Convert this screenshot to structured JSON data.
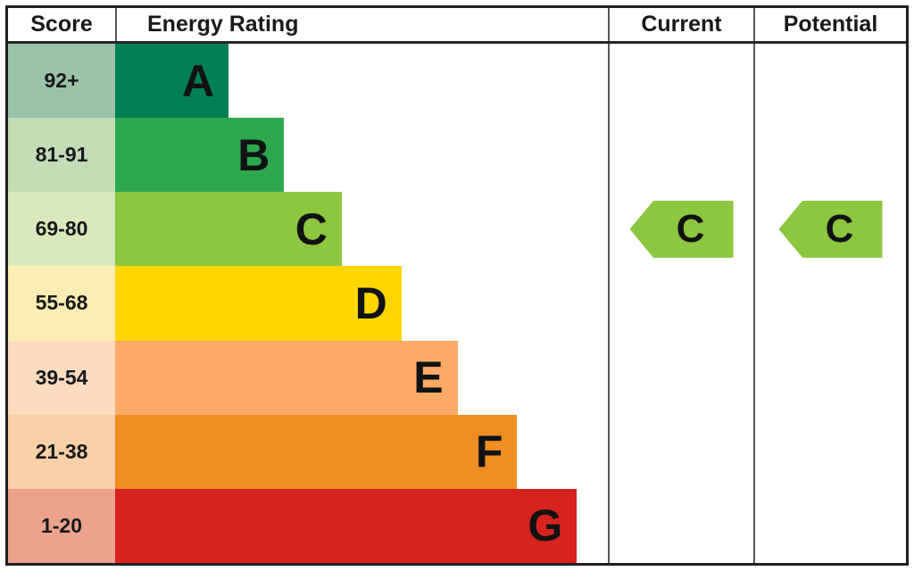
{
  "header": {
    "score_label": "Score",
    "rating_label": "Energy Rating",
    "current_label": "Current",
    "potential_label": "Potential"
  },
  "chart_data": {
    "type": "bar",
    "title": "Energy Rating",
    "bands": [
      {
        "score": "92+",
        "letter": "A",
        "bar_color": "#008054",
        "score_bg": "#9cc3a8",
        "bar_width_pct": 23.0
      },
      {
        "score": "81-91",
        "letter": "B",
        "bar_color": "#2ea84e",
        "score_bg": "#c2ddb5",
        "bar_width_pct": 34.3
      },
      {
        "score": "69-80",
        "letter": "C",
        "bar_color": "#8dc63f",
        "score_bg": "#d9e9bd",
        "bar_width_pct": 46.0
      },
      {
        "score": "55-68",
        "letter": "D",
        "bar_color": "#ffd500",
        "score_bg": "#fbedb4",
        "bar_width_pct": 58.1
      },
      {
        "score": "39-54",
        "letter": "E",
        "bar_color": "#fcaa65",
        "score_bg": "#fcdcc0",
        "bar_width_pct": 69.5
      },
      {
        "score": "21-38",
        "letter": "F",
        "bar_color": "#ef8d23",
        "score_bg": "#fad0a9",
        "bar_width_pct": 81.6
      },
      {
        "score": "1-20",
        "letter": "G",
        "bar_color": "#d7231d",
        "score_bg": "#eca28d",
        "bar_width_pct": 93.7
      }
    ],
    "current": {
      "letter": "C",
      "band_index": 2,
      "arrow_color": "#8dc63f"
    },
    "potential": {
      "letter": "C",
      "band_index": 2,
      "arrow_color": "#8dc63f"
    }
  }
}
